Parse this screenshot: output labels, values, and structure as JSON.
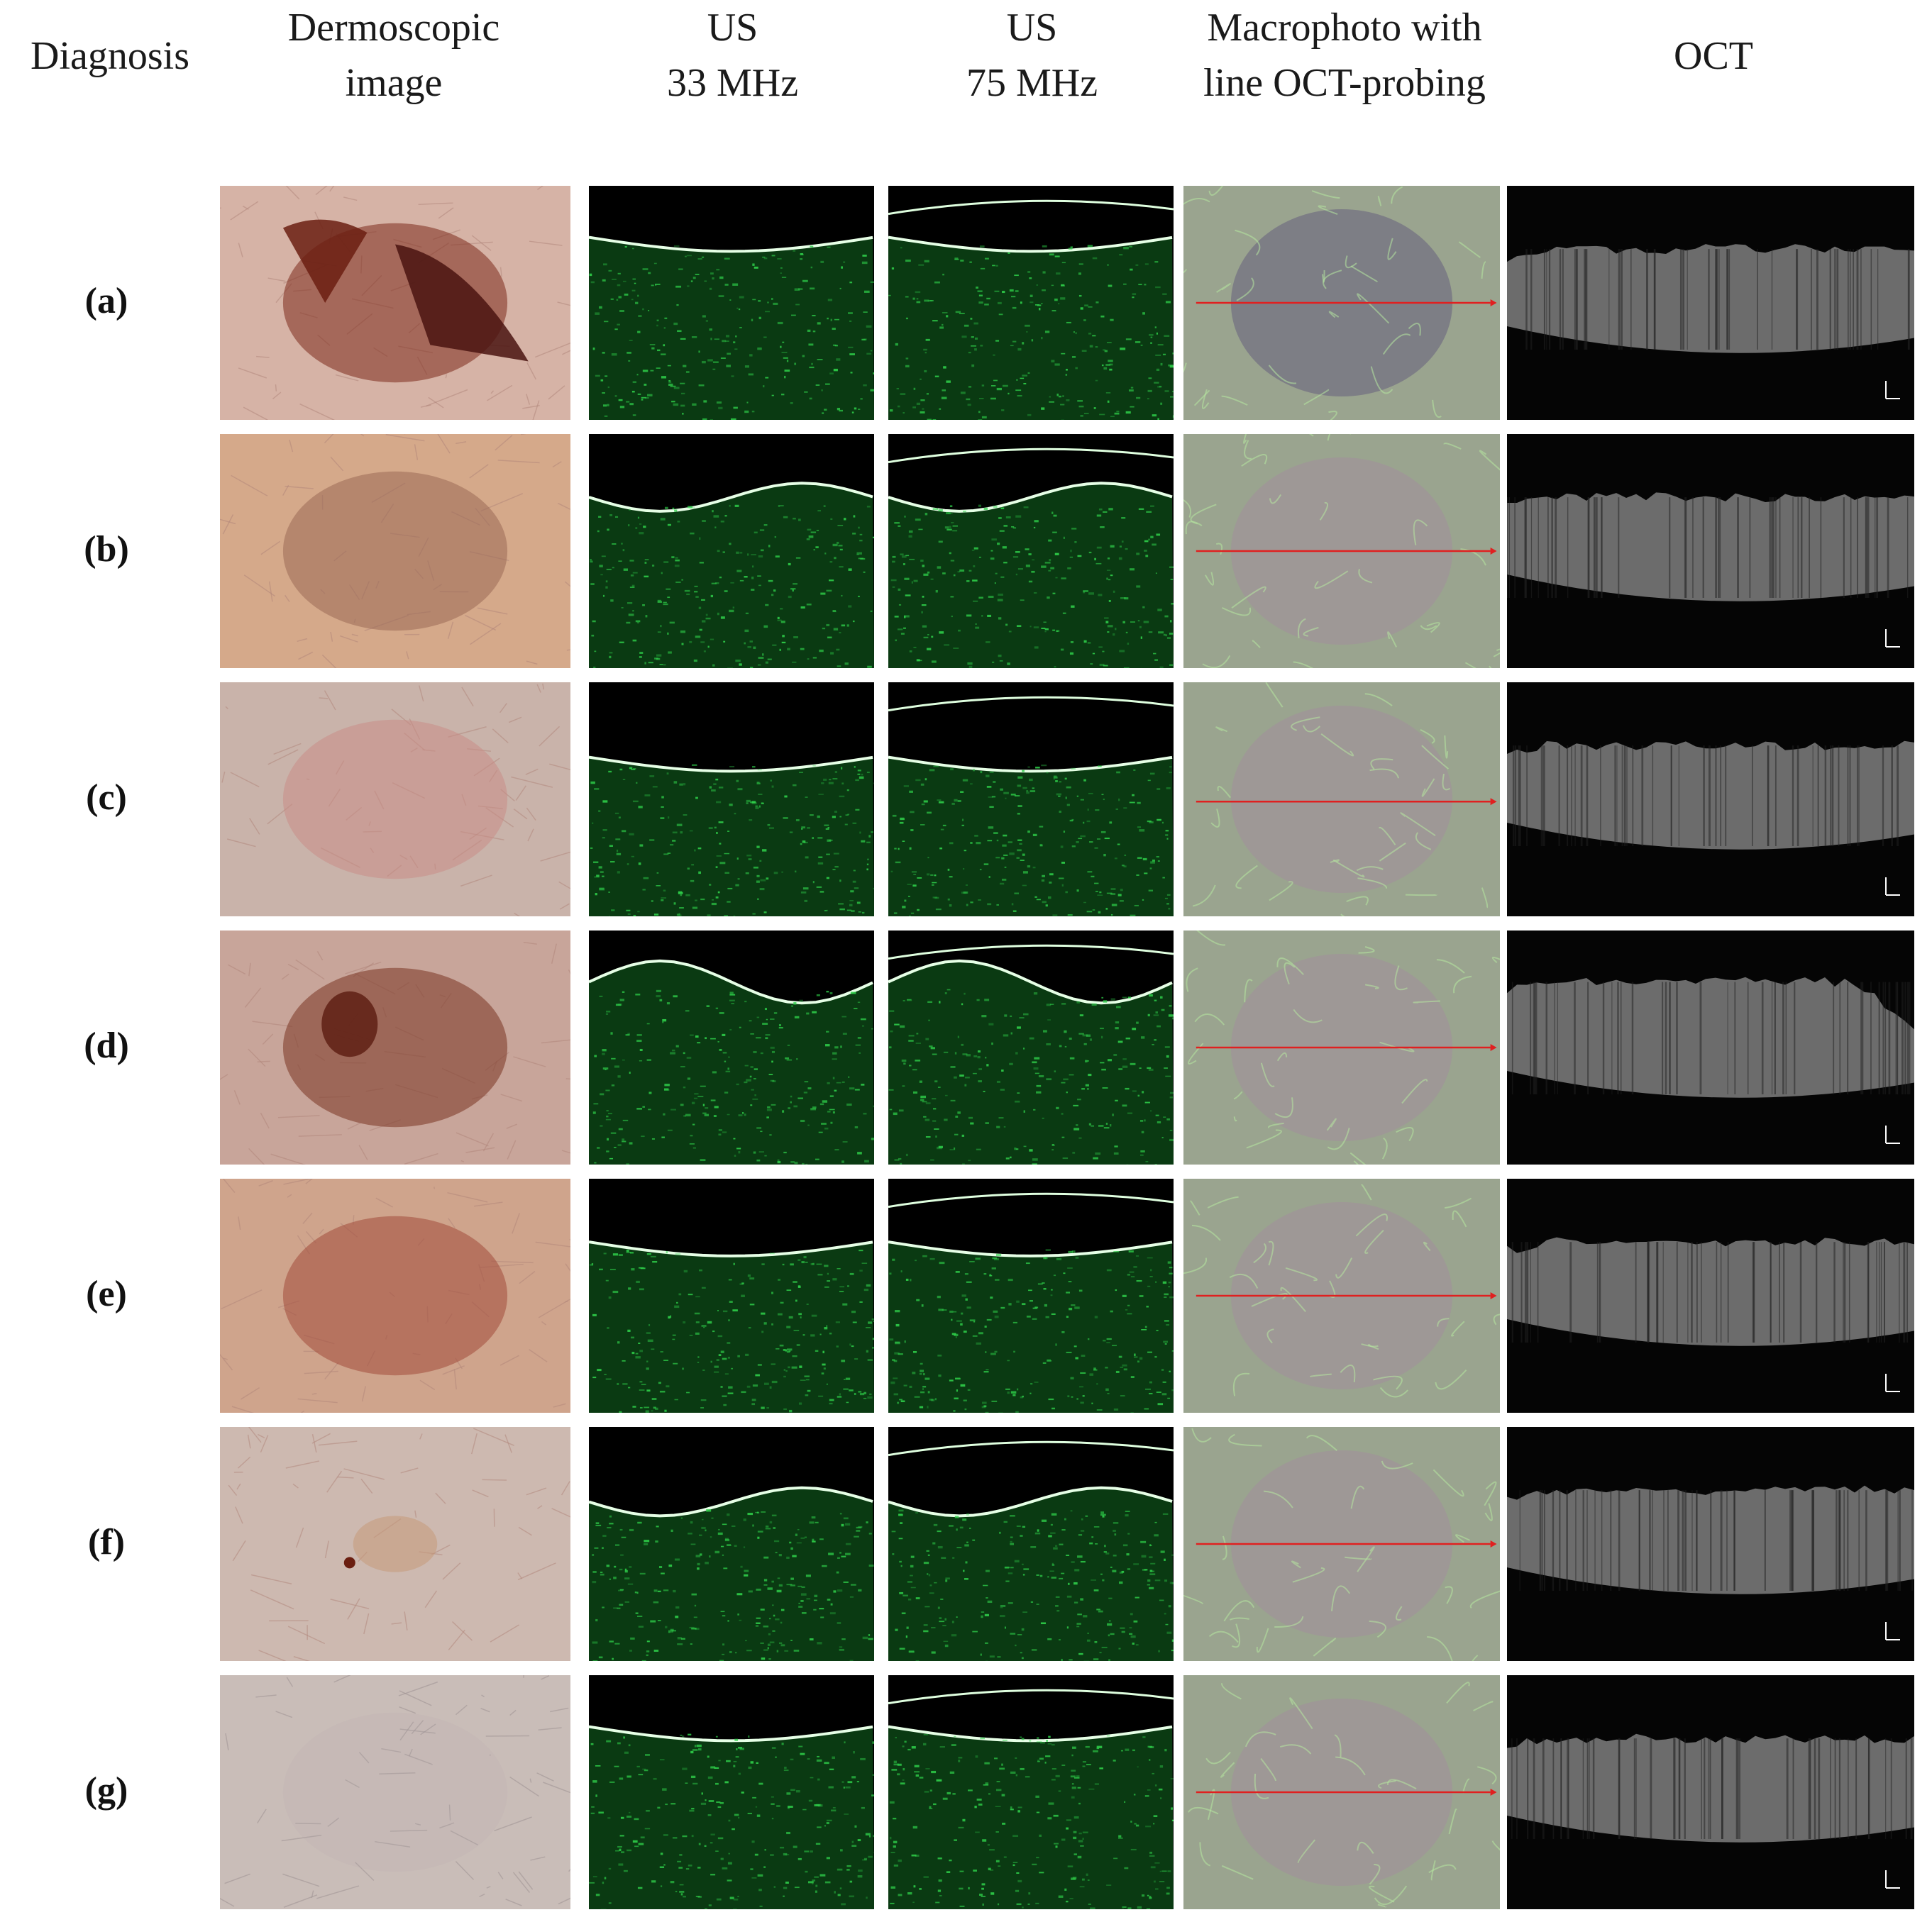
{
  "headers": {
    "diagnosis": "Diagnosis",
    "dermoscopic_1": "Dermoscopic",
    "dermoscopic_2": "image",
    "us33_1": "US",
    "us33_2": "33 MHz",
    "us75_1": "US",
    "us75_2": "75 MHz",
    "macro_1": "Macrophoto with",
    "macro_2": "line OCT-probing",
    "oct": "OCT"
  },
  "rows": [
    {
      "label": "(a)"
    },
    {
      "label": "(b)"
    },
    {
      "label": "(c)"
    },
    {
      "label": "(d)"
    },
    {
      "label": "(e)"
    },
    {
      "label": "(f)"
    },
    {
      "label": "(g)"
    }
  ],
  "colors": {
    "skin": "#d9b8a8",
    "lesion_red": "#8a2a1e",
    "us_green": "#2fd04a",
    "macro_base": "#9aa48f",
    "probe_line": "#e02020",
    "oct_bg": "#050505",
    "oct_tissue": "#8f8f8f"
  }
}
